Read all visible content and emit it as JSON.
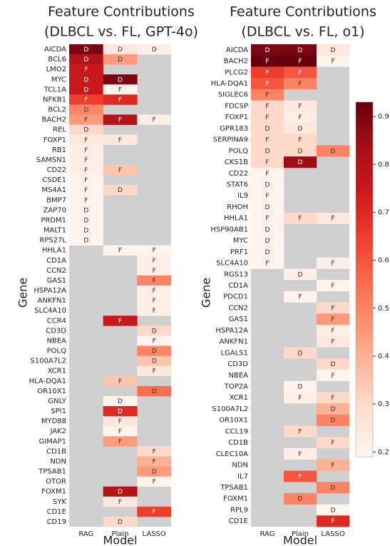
{
  "chart_data": [
    {
      "type": "heatmap",
      "title": "Feature Contributions",
      "subtitle": "(DLBCL vs. FL, GPT-4o)",
      "xlabel": "Model",
      "ylabel": "Gene",
      "categories": [
        "RAG",
        "Plain",
        "LASSO"
      ],
      "rows": [
        "AICDA",
        "BCL6",
        "LMO2",
        "MYC",
        "TCL1A",
        "NFKB1",
        "BCL2",
        "BACH2",
        "REL",
        "FOXP1",
        "RB1",
        "SAMSN1",
        "CD22",
        "CSDE1",
        "MS4A1",
        "BMP7",
        "ZAP70",
        "PRDM1",
        "MALT1",
        "RPS27L",
        "HHLA1",
        "CD1A",
        "CCN2",
        "GAS1",
        "HSPA12A",
        "ANKFN1",
        "SLC4A10",
        "CCR4",
        "CD3D",
        "NBEA",
        "POLQ",
        "S100A7L2",
        "XCR1",
        "HLA-DQA1",
        "OR10X1",
        "GNLY",
        "SPI1",
        "MYD88",
        "JAK2",
        "GIMAP1",
        "CD1B",
        "NDN",
        "TPSAB1",
        "OTOR",
        "FOXM1",
        "SYK",
        "CD1E",
        "CD19"
      ],
      "values": [
        [
          0.9,
          0.25,
          0.22
        ],
        [
          0.8,
          0.45,
          null
        ],
        [
          0.75,
          null,
          null
        ],
        [
          0.75,
          0.9,
          null
        ],
        [
          0.75,
          0.2,
          null
        ],
        [
          0.65,
          0.7,
          null
        ],
        [
          0.5,
          null,
          null
        ],
        [
          0.45,
          0.8,
          0.22
        ],
        [
          0.3,
          null,
          null
        ],
        [
          0.25,
          0.25,
          null
        ],
        [
          0.22,
          null,
          null
        ],
        [
          0.22,
          null,
          null
        ],
        [
          0.22,
          0.35,
          null
        ],
        [
          0.2,
          null,
          null
        ],
        [
          0.2,
          0.3,
          null
        ],
        [
          0.2,
          null,
          null
        ],
        [
          0.2,
          null,
          null
        ],
        [
          0.2,
          null,
          null
        ],
        [
          0.2,
          null,
          null
        ],
        [
          0.2,
          null,
          null
        ],
        [
          null,
          0.2,
          0.2
        ],
        [
          null,
          null,
          0.22
        ],
        [
          null,
          null,
          0.22
        ],
        [
          null,
          null,
          0.5
        ],
        [
          null,
          null,
          0.22
        ],
        [
          null,
          null,
          0.22
        ],
        [
          null,
          null,
          0.22
        ],
        [
          null,
          0.75,
          null
        ],
        [
          null,
          null,
          0.3
        ],
        [
          null,
          null,
          0.2
        ],
        [
          null,
          null,
          0.5
        ],
        [
          null,
          null,
          0.35
        ],
        [
          null,
          null,
          0.25
        ],
        [
          null,
          0.35,
          null
        ],
        [
          null,
          null,
          0.55
        ],
        [
          null,
          0.2,
          null
        ],
        [
          null,
          0.7,
          null
        ],
        [
          null,
          0.25,
          null
        ],
        [
          null,
          0.2,
          null
        ],
        [
          null,
          0.45,
          null
        ],
        [
          null,
          null,
          0.3
        ],
        [
          null,
          null,
          0.4
        ],
        [
          null,
          null,
          0.45
        ],
        [
          null,
          null,
          0.2
        ],
        [
          null,
          0.8,
          null
        ],
        [
          null,
          0.25,
          null
        ],
        [
          null,
          null,
          0.65
        ],
        [
          null,
          0.3,
          null
        ]
      ],
      "value_labels": [
        [
          "D",
          "D",
          "D"
        ],
        [
          "D",
          "D",
          null
        ],
        [
          "F",
          null,
          null
        ],
        [
          "D",
          "D",
          null
        ],
        [
          "D",
          "F",
          null
        ],
        [
          "F",
          "F",
          null
        ],
        [
          "D",
          null,
          null
        ],
        [
          "F",
          "F",
          "F"
        ],
        [
          "D",
          null,
          null
        ],
        [
          "F",
          "F",
          null
        ],
        [
          "F",
          null,
          null
        ],
        [
          "F",
          null,
          null
        ],
        [
          "F",
          "F",
          null
        ],
        [
          "F",
          null,
          null
        ],
        [
          "F",
          "D",
          null
        ],
        [
          "F",
          null,
          null
        ],
        [
          "D",
          null,
          null
        ],
        [
          "D",
          null,
          null
        ],
        [
          "D",
          null,
          null
        ],
        [
          "D",
          null,
          null
        ],
        [
          null,
          "F",
          "F"
        ],
        [
          null,
          null,
          "F"
        ],
        [
          null,
          null,
          "F"
        ],
        [
          null,
          null,
          "F"
        ],
        [
          null,
          null,
          "F"
        ],
        [
          null,
          null,
          "F"
        ],
        [
          null,
          null,
          "F"
        ],
        [
          null,
          "F",
          null
        ],
        [
          null,
          null,
          "D"
        ],
        [
          null,
          null,
          "F"
        ],
        [
          null,
          null,
          "D"
        ],
        [
          null,
          null,
          "D"
        ],
        [
          null,
          null,
          "F"
        ],
        [
          null,
          "F",
          null
        ],
        [
          null,
          null,
          "D"
        ],
        [
          null,
          "D",
          null
        ],
        [
          null,
          "D",
          null
        ],
        [
          null,
          "F",
          null
        ],
        [
          null,
          "F",
          null
        ],
        [
          null,
          "F",
          null
        ],
        [
          null,
          null,
          "F"
        ],
        [
          null,
          null,
          "F"
        ],
        [
          null,
          null,
          "D"
        ],
        [
          null,
          null,
          "F"
        ],
        [
          null,
          "D",
          null
        ],
        [
          null,
          "F",
          null
        ],
        [
          null,
          null,
          "F"
        ],
        [
          null,
          "D",
          null
        ]
      ],
      "clim": [
        0.19,
        0.93
      ],
      "colormap": "Reds"
    },
    {
      "type": "heatmap",
      "title": "Feature Contributions",
      "subtitle": "(DLBCL vs. FL, o1)",
      "xlabel": "Model",
      "ylabel": "Gene",
      "categories": [
        "RAG",
        "Plain",
        "LASSO"
      ],
      "rows": [
        "AICDA",
        "BACH2",
        "PLCG2",
        "HLA-DQA1",
        "SIGLEC6",
        "FDCSP",
        "FOXP1",
        "GPR183",
        "SERPINA9",
        "POLQ",
        "CKS1B",
        "CD22",
        "STAT6",
        "IL9",
        "RHOH",
        "HHLA1",
        "HSP90AB1",
        "MYC",
        "PRF1",
        "SLC4A10",
        "RGS13",
        "CD1A",
        "PDCD1",
        "CCN2",
        "GAS1",
        "HSPA12A",
        "ANKFN1",
        "LGALS1",
        "CD3D",
        "NBEA",
        "TOP2A",
        "XCR1",
        "S100A7L2",
        "OR10X1",
        "CCL19",
        "CD1B",
        "CLEC10A",
        "NDN",
        "IL7",
        "TPSAB1",
        "FOXM1",
        "RPL9",
        "CD1E"
      ],
      "values": [
        [
          0.9,
          0.9,
          0.25
        ],
        [
          0.93,
          0.93,
          0.2
        ],
        [
          0.65,
          0.6,
          null
        ],
        [
          0.6,
          0.5,
          null
        ],
        [
          0.5,
          null,
          null
        ],
        [
          0.3,
          0.25,
          null
        ],
        [
          0.3,
          0.22,
          null
        ],
        [
          0.3,
          0.25,
          null
        ],
        [
          0.3,
          0.3,
          null
        ],
        [
          0.3,
          0.3,
          0.5
        ],
        [
          0.3,
          0.85,
          null
        ],
        [
          0.2,
          null,
          null
        ],
        [
          0.2,
          null,
          null
        ],
        [
          0.2,
          null,
          null
        ],
        [
          0.2,
          null,
          null
        ],
        [
          0.2,
          0.3,
          0.25
        ],
        [
          0.2,
          null,
          null
        ],
        [
          0.2,
          null,
          null
        ],
        [
          0.2,
          null,
          null
        ],
        [
          0.2,
          null,
          0.22
        ],
        [
          null,
          0.22,
          null
        ],
        [
          null,
          null,
          0.2
        ],
        [
          null,
          0.2,
          null
        ],
        [
          null,
          null,
          0.3
        ],
        [
          null,
          null,
          0.45
        ],
        [
          null,
          null,
          0.22
        ],
        [
          null,
          null,
          0.25
        ],
        [
          null,
          0.3,
          null
        ],
        [
          null,
          null,
          0.3
        ],
        [
          null,
          null,
          0.2
        ],
        [
          null,
          0.2,
          null
        ],
        [
          null,
          0.22,
          0.3
        ],
        [
          null,
          null,
          0.4
        ],
        [
          null,
          null,
          0.5
        ],
        [
          null,
          0.3,
          null
        ],
        [
          null,
          null,
          0.3
        ],
        [
          null,
          0.22,
          null
        ],
        [
          null,
          null,
          0.4
        ],
        [
          null,
          0.6,
          null
        ],
        [
          null,
          null,
          0.5
        ],
        [
          null,
          0.5,
          null
        ],
        [
          null,
          null,
          0.2
        ],
        [
          null,
          null,
          0.7
        ]
      ],
      "value_labels": [
        [
          "D",
          "D",
          "D"
        ],
        [
          "F",
          "F",
          "F"
        ],
        [
          "F",
          "F",
          null
        ],
        [
          "F",
          "F",
          null
        ],
        [
          "F",
          null,
          null
        ],
        [
          "F",
          "F",
          null
        ],
        [
          "F",
          "F",
          null
        ],
        [
          "D",
          "D",
          null
        ],
        [
          "F",
          "F",
          null
        ],
        [
          "D",
          "D",
          "D"
        ],
        [
          "F",
          "D",
          null
        ],
        [
          "F",
          null,
          null
        ],
        [
          "D",
          null,
          null
        ],
        [
          "F",
          null,
          null
        ],
        [
          "D",
          null,
          null
        ],
        [
          "F",
          "F",
          "F"
        ],
        [
          "D",
          null,
          null
        ],
        [
          "D",
          null,
          null
        ],
        [
          "D",
          null,
          null
        ],
        [
          "F",
          null,
          "F"
        ],
        [
          null,
          "D",
          null
        ],
        [
          null,
          null,
          "F"
        ],
        [
          null,
          "F",
          null
        ],
        [
          null,
          null,
          "F"
        ],
        [
          null,
          null,
          "F"
        ],
        [
          null,
          null,
          "F"
        ],
        [
          null,
          null,
          "F"
        ],
        [
          null,
          "D",
          null
        ],
        [
          null,
          null,
          "D"
        ],
        [
          null,
          null,
          "F"
        ],
        [
          null,
          "D",
          null
        ],
        [
          null,
          "F",
          "F"
        ],
        [
          null,
          null,
          "D"
        ],
        [
          null,
          null,
          "D"
        ],
        [
          null,
          "F",
          null
        ],
        [
          null,
          null,
          "F"
        ],
        [
          null,
          "F",
          null
        ],
        [
          null,
          null,
          "F"
        ],
        [
          null,
          "F",
          null
        ],
        [
          null,
          null,
          "D"
        ],
        [
          null,
          "D",
          null
        ],
        [
          null,
          null,
          "D"
        ],
        [
          null,
          null,
          "F"
        ]
      ],
      "clim": [
        0.19,
        0.93
      ],
      "colormap": "Reds",
      "colorbar": true,
      "cticks": [
        0.2,
        0.3,
        0.4,
        0.5,
        0.6,
        0.7,
        0.8,
        0.9
      ]
    }
  ]
}
